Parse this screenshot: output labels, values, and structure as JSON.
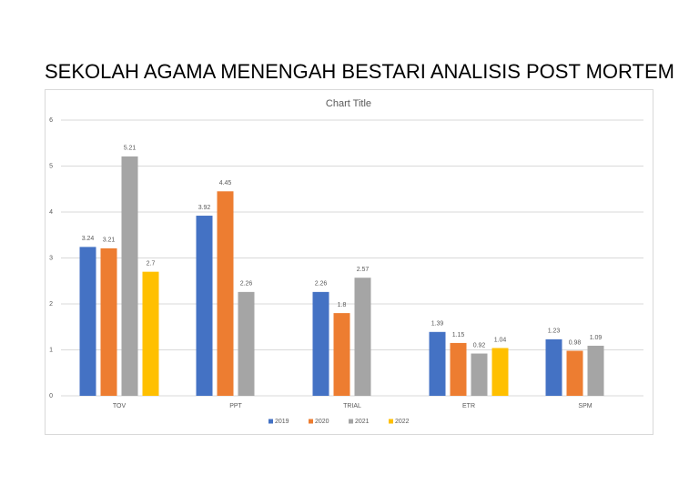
{
  "page_title": "SEKOLAH AGAMA MENENGAH BESTARI ANALISIS POST MORTEM",
  "chart_data": {
    "type": "bar",
    "title": "Chart Title",
    "categories": [
      "TOV",
      "PPT",
      "TRIAL",
      "ETR",
      "SPM"
    ],
    "series": [
      {
        "name": "2019",
        "color": "#4472c4",
        "values": [
          3.24,
          3.92,
          2.26,
          1.39,
          1.23
        ]
      },
      {
        "name": "2020",
        "color": "#ed7d31",
        "values": [
          3.21,
          4.45,
          1.8,
          1.15,
          0.98
        ]
      },
      {
        "name": "2021",
        "color": "#a5a5a5",
        "values": [
          5.21,
          2.26,
          2.57,
          0.92,
          1.09
        ]
      },
      {
        "name": "2022",
        "color": "#ffc000",
        "values": [
          2.7,
          null,
          null,
          1.04,
          null
        ]
      }
    ],
    "ylim": [
      0,
      6
    ],
    "yticks": [
      0,
      1,
      2,
      3,
      4,
      5,
      6
    ],
    "grid": true,
    "legend": "bottom"
  }
}
